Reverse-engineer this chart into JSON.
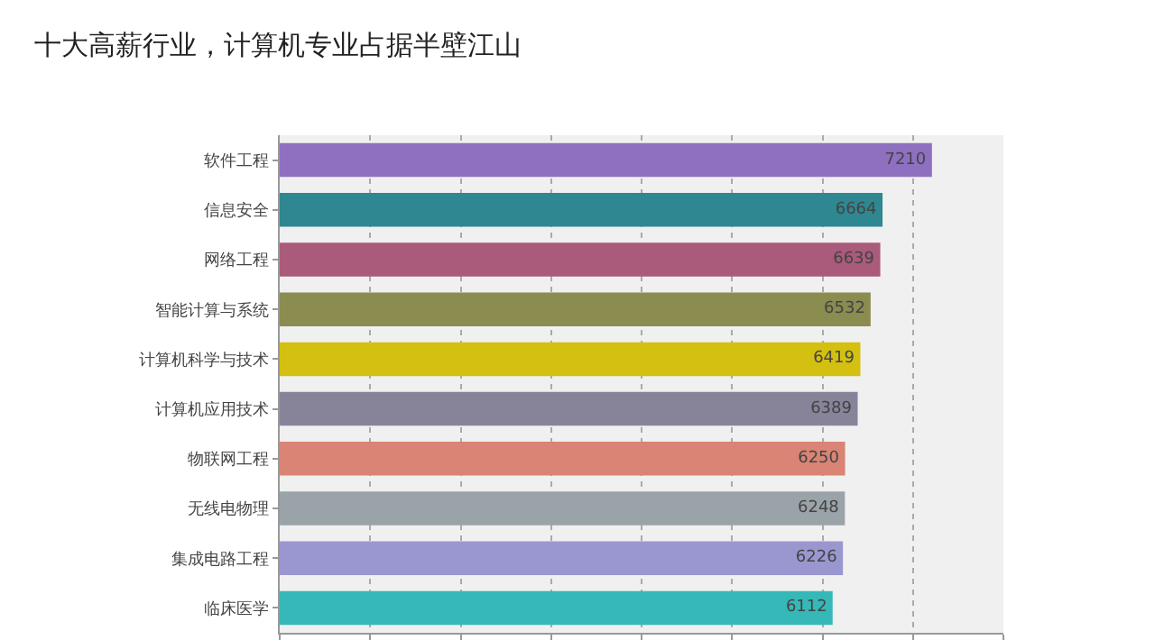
{
  "chart_data": {
    "type": "bar",
    "orientation": "horizontal",
    "title": "十大高薪行业，计算机专业占据半壁江山",
    "categories": [
      "软件工程",
      "信息安全",
      "网络工程",
      "智能计算与系统",
      "计算机科学与技术",
      "计算机应用技术",
      "物联网工程",
      "无线电物理",
      "集成电路工程",
      "临床医学"
    ],
    "values": [
      7210,
      6664,
      6639,
      6532,
      6419,
      6389,
      6250,
      6248,
      6226,
      6112
    ],
    "colors": [
      "#8e6fc0",
      "#2e8791",
      "#aa5a7a",
      "#8a8c50",
      "#d4c010",
      "#87849a",
      "#d98474",
      "#9aa4a8",
      "#9a97d0",
      "#36b8b8"
    ],
    "data_labels": true,
    "xlim": [
      0,
      8000
    ],
    "xticks": [
      {
        "value": 0,
        "label": null
      },
      {
        "value": 1000,
        "label": null
      },
      {
        "value": 2000,
        "label": null
      },
      {
        "value": 3000,
        "label": null
      },
      {
        "value": 4000,
        "label": null
      },
      {
        "value": 5000,
        "label": null
      },
      {
        "value": 6000,
        "label": null
      },
      {
        "value": 7000,
        "label": null
      },
      {
        "value": 8000,
        "label": null
      }
    ],
    "tick_labels": "y",
    "grid": "x"
  }
}
